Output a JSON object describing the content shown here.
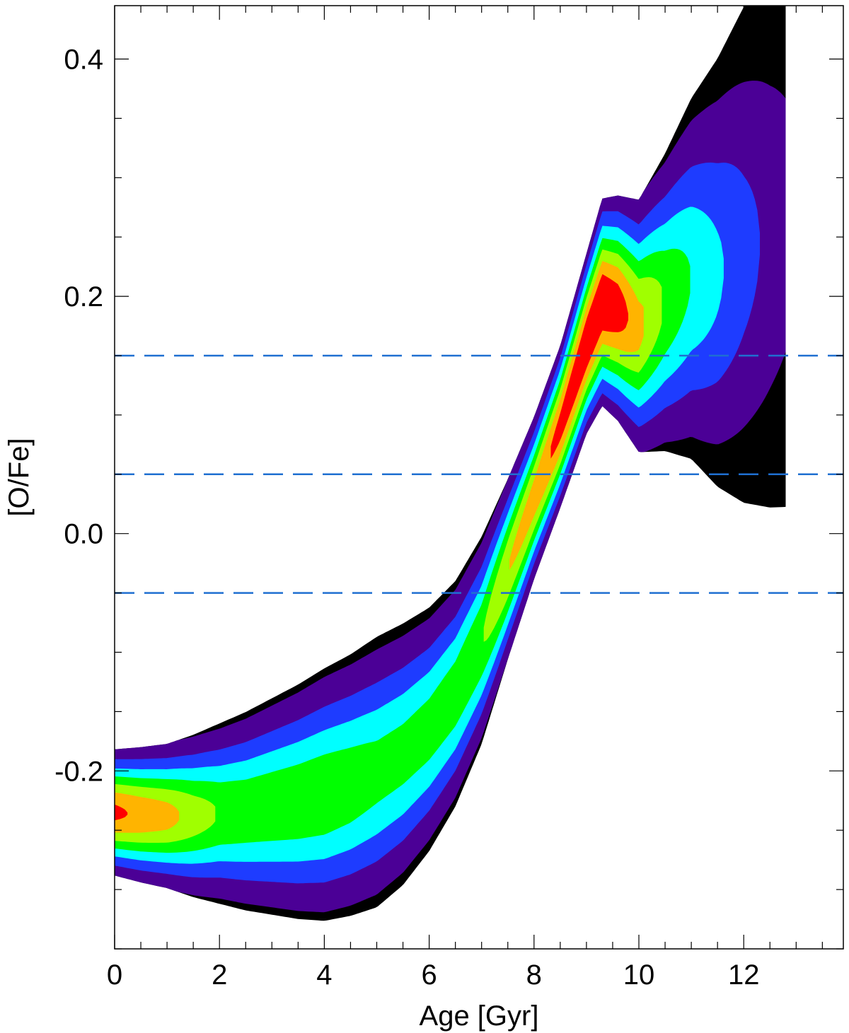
{
  "chart_data": {
    "type": "heatmap",
    "title": "",
    "xlabel": "Age [Gyr]",
    "ylabel": "[O/Fe]",
    "xlim": [
      0,
      13.9
    ],
    "ylim": [
      -0.35,
      0.445
    ],
    "x_ticks": [
      0,
      2,
      4,
      6,
      8,
      10,
      12
    ],
    "x_tick_labels": [
      "0",
      "2",
      "4",
      "6",
      "8",
      "10",
      "12"
    ],
    "x_minor_step": 0.5,
    "y_ticks": [
      -0.2,
      0.0,
      0.2,
      0.4
    ],
    "y_tick_labels": [
      "-0.2",
      "0.0",
      "0.2",
      "0.4"
    ],
    "y_minor_step": 0.05,
    "grid": false,
    "legend": "none",
    "density_levels": [
      "lowest",
      "low",
      "low-mid",
      "mid",
      "mid-high",
      "high",
      "higher",
      "peak"
    ],
    "level_colors": [
      "#000000",
      "#4b0096",
      "#1e3cff",
      "#00ffff",
      "#00ff00",
      "#a0ff00",
      "#ffb400",
      "#ff0000"
    ],
    "ridge": {
      "x": [
        0.0,
        0.5,
        1.0,
        1.5,
        2.0,
        2.5,
        3.0,
        3.5,
        4.0,
        4.5,
        5.0,
        5.5,
        6.0,
        6.5,
        7.0,
        7.5,
        8.0,
        8.5,
        9.0,
        9.3,
        9.6,
        10.0,
        10.5,
        11.0,
        11.5,
        12.0,
        12.5,
        12.8
      ],
      "y": [
        -0.235,
        -0.237,
        -0.238,
        -0.238,
        -0.236,
        -0.234,
        -0.23,
        -0.226,
        -0.22,
        -0.212,
        -0.201,
        -0.186,
        -0.165,
        -0.135,
        -0.09,
        -0.03,
        0.03,
        0.09,
        0.16,
        0.195,
        0.19,
        0.175,
        0.195,
        0.215,
        0.22,
        0.235,
        0.25,
        0.26
      ],
      "width": [
        0.028,
        0.03,
        0.032,
        0.036,
        0.04,
        0.044,
        0.048,
        0.052,
        0.056,
        0.058,
        0.06,
        0.058,
        0.054,
        0.05,
        0.046,
        0.04,
        0.036,
        0.036,
        0.04,
        0.046,
        0.05,
        0.056,
        0.066,
        0.08,
        0.095,
        0.11,
        0.12,
        0.125
      ],
      "peak_density": [
        0.9,
        0.85,
        0.8,
        0.7,
        0.62,
        0.6,
        0.6,
        0.6,
        0.6,
        0.58,
        0.55,
        0.55,
        0.56,
        0.58,
        0.62,
        0.75,
        0.82,
        0.92,
        1.0,
        1.0,
        0.95,
        0.8,
        0.62,
        0.5,
        0.4,
        0.3,
        0.22,
        0.18
      ]
    },
    "reference_lines": [
      {
        "y": 0.15,
        "style": "dashed",
        "color": "#1f6fd1"
      },
      {
        "y": 0.05,
        "style": "dashed",
        "color": "#1f6fd1"
      },
      {
        "y": -0.05,
        "style": "dashed",
        "color": "#1f6fd1"
      }
    ]
  }
}
